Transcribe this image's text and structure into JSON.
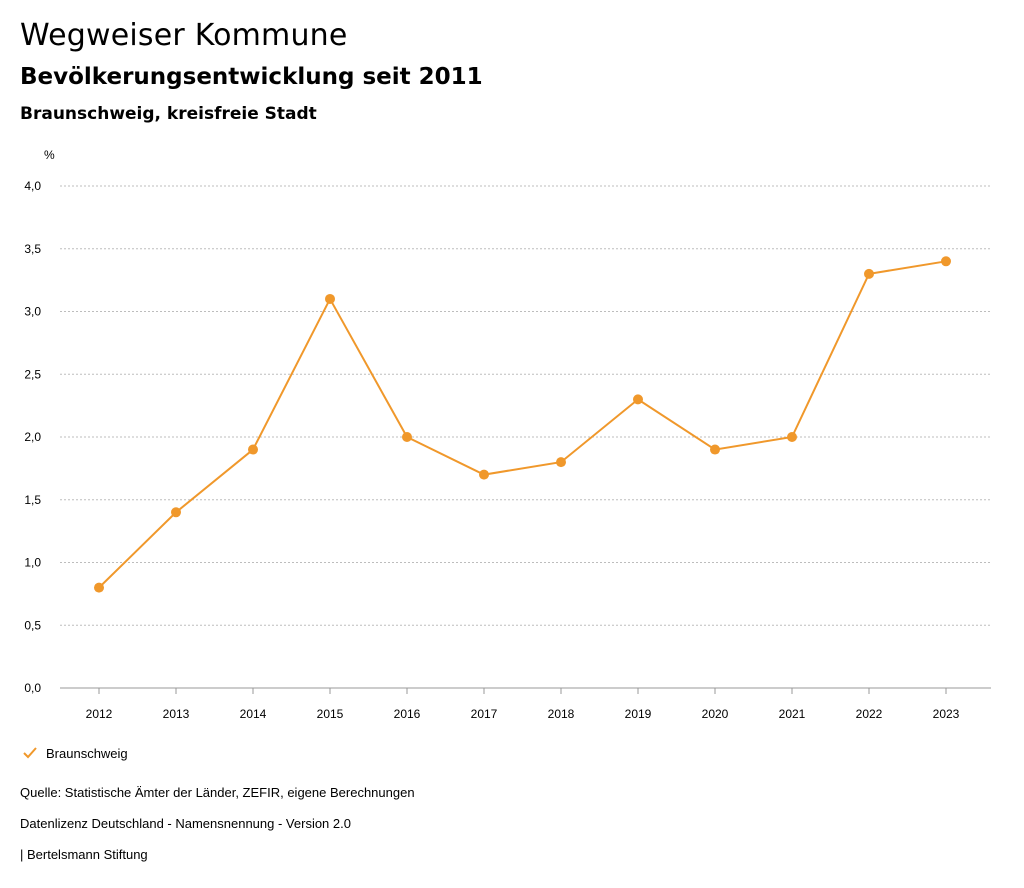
{
  "header": {
    "title": "Wegweiser Kommune",
    "subtitle": "Bevölkerungsentwicklung seit 2011",
    "region": "Braunschweig, kreisfreie Stadt"
  },
  "legend": {
    "label": "Braunschweig"
  },
  "footer": {
    "source": "Quelle: Statistische Ämter der Länder, ZEFIR, eigene Berechnungen",
    "license": "Datenlizenz Deutschland - Namensnennung - Version 2.0",
    "organization": "| Bertelsmann Stiftung"
  },
  "colors": {
    "series": "#f0982b",
    "grid": "#bdbdbd"
  },
  "chart_data": {
    "type": "line",
    "title": "Bevölkerungsentwicklung seit 2011",
    "ylabel": "%",
    "xlabel": "",
    "ylim": [
      0,
      4
    ],
    "yticks": [
      "0,0",
      "0,5",
      "1,0",
      "1,5",
      "2,0",
      "2,5",
      "3,0",
      "3,5",
      "4,0"
    ],
    "grid": true,
    "legend_position": "bottom-left",
    "categories": [
      "2012",
      "2013",
      "2014",
      "2015",
      "2016",
      "2017",
      "2018",
      "2019",
      "2020",
      "2021",
      "2022",
      "2023"
    ],
    "series": [
      {
        "name": "Braunschweig",
        "values": [
          0.8,
          1.4,
          1.9,
          3.1,
          2.0,
          1.7,
          1.8,
          2.3,
          1.9,
          2.0,
          3.3,
          3.4
        ]
      }
    ]
  }
}
